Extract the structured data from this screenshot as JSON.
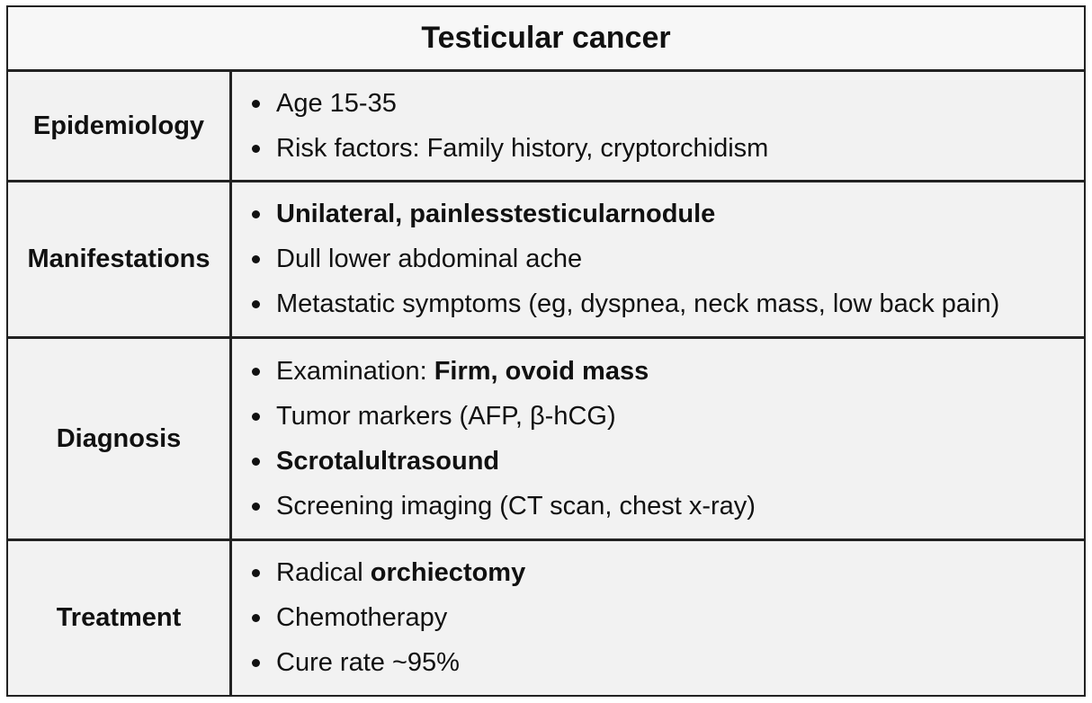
{
  "title": "Testicular cancer",
  "sections": [
    {
      "label": "Epidemiology",
      "items": [
        [
          {
            "text": "Age 15-35",
            "bold": false
          }
        ],
        [
          {
            "text": "Risk factors: Family history, cryptorchidism",
            "bold": false
          }
        ]
      ]
    },
    {
      "label": "Manifestations",
      "items": [
        [
          {
            "text": "Unilateral, painlesstesticularnodule",
            "bold": true
          }
        ],
        [
          {
            "text": "Dull lower abdominal ache",
            "bold": false
          }
        ],
        [
          {
            "text": "Metastatic symptoms (eg, dyspnea, neck mass, low back pain)",
            "bold": false
          }
        ]
      ]
    },
    {
      "label": "Diagnosis",
      "items": [
        [
          {
            "text": "Examination: ",
            "bold": false
          },
          {
            "text": "Firm, ovoid mass",
            "bold": true
          }
        ],
        [
          {
            "text": "Tumor markers (AFP, β-hCG)",
            "bold": false
          }
        ],
        [
          {
            "text": "Scrotalultrasound",
            "bold": true
          }
        ],
        [
          {
            "text": "Screening imaging (CT scan, chest x-ray)",
            "bold": false
          }
        ]
      ]
    },
    {
      "label": "Treatment",
      "items": [
        [
          {
            "text": "Radical ",
            "bold": false
          },
          {
            "text": "orchiectomy",
            "bold": true
          }
        ],
        [
          {
            "text": "Chemotherapy",
            "bold": false
          }
        ],
        [
          {
            "text": "Cure rate ~95%",
            "bold": false
          }
        ]
      ]
    }
  ]
}
